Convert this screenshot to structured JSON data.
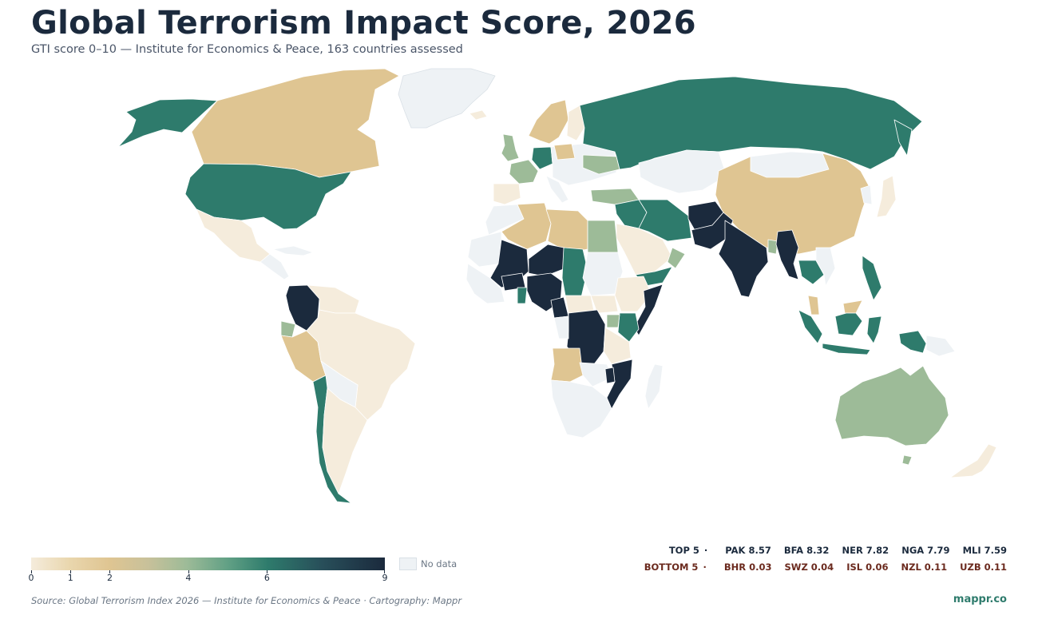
{
  "title": "Global Terrorism Impact Score, 2026",
  "subtitle": "GTI score 0–10 — Institute for Economics & Peace, 163 countries assessed",
  "legend": {
    "ticks": [
      "0",
      "1",
      "2",
      "4",
      "6",
      "9"
    ],
    "tick_values": [
      0,
      1,
      2,
      4,
      6,
      9
    ],
    "max": 9,
    "no_data_label": "No data"
  },
  "top5": {
    "label": "TOP 5",
    "items": [
      "PAK 8.57",
      "BFA 8.32",
      "NER 7.82",
      "NGA 7.79",
      "MLI 7.59"
    ]
  },
  "bottom5": {
    "label": "BOTTOM 5",
    "items": [
      "BHR 0.03",
      "SWZ 0.04",
      "ISL 0.06",
      "NZL 0.11",
      "UZB 0.11"
    ]
  },
  "source": "Source: Global Terrorism Index 2026 — Institute for Economics & Peace · Cartography: Mappr",
  "brand": "mappr.co",
  "colors": {
    "very_high": "#1b2a3d",
    "high": "#2e7b6c",
    "mid": "#9dbb98",
    "low": "#dfc592",
    "very_low": "#f5ecdc",
    "no_data": "#eef2f5",
    "top_text": "#1b2a3d",
    "bottom_text": "#6b2a1e",
    "brand": "#2e7b6c"
  }
}
